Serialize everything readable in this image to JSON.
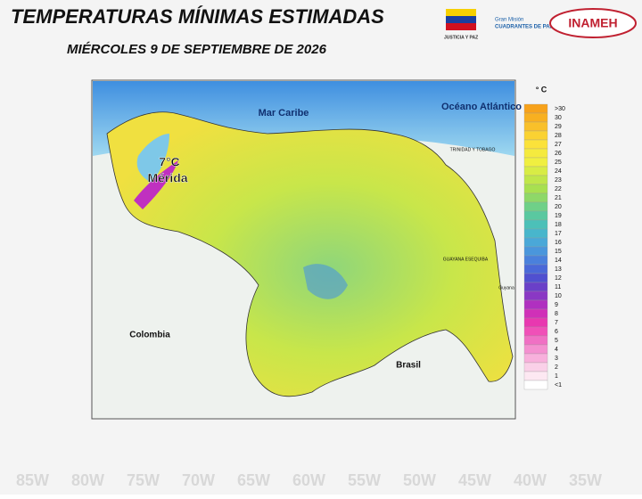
{
  "header": {
    "title": "TEMPERATURAS MÍNIMAS ESTIMADAS",
    "date": "MIÉRCOLES 9 DE SEPTIEMBRE DE 2026",
    "logos": [
      "JUSTICIA Y PAZ",
      "Gran Misión",
      "CUADRANTES DE PAZ",
      "INAMEH"
    ]
  },
  "map": {
    "labels": {
      "sea": "Mar Caribe",
      "ocean": "Océano Atlántico",
      "colombia": "Colombia",
      "brasil": "Brasil",
      "guayana": "GUAYANA ESEQUIBA",
      "trinidad": "TRINIDAD Y TOBAGO",
      "guyana": "Guyana"
    },
    "highlight": {
      "value": "7°C",
      "place": "Mérida"
    },
    "background_axis": [
      "85W",
      "80W",
      "75W",
      "70W",
      "65W",
      "60W",
      "55W",
      "50W",
      "45W",
      "40W",
      "35W"
    ]
  },
  "legend": {
    "title": "° C",
    "items": [
      {
        "label": ">30",
        "color": "#f7a21b"
      },
      {
        "label": "30",
        "color": "#f8b020"
      },
      {
        "label": "29",
        "color": "#f9c02a"
      },
      {
        "label": "28",
        "color": "#fad232"
      },
      {
        "label": "27",
        "color": "#fbe23a"
      },
      {
        "label": "26",
        "color": "#f5ea3e"
      },
      {
        "label": "25",
        "color": "#f0ef40"
      },
      {
        "label": "24",
        "color": "#d8ec45"
      },
      {
        "label": "23",
        "color": "#c0e64a"
      },
      {
        "label": "22",
        "color": "#a8e050"
      },
      {
        "label": "21",
        "color": "#8ed868"
      },
      {
        "label": "20",
        "color": "#6fd088"
      },
      {
        "label": "19",
        "color": "#5ac8a0"
      },
      {
        "label": "18",
        "color": "#4cc0b8"
      },
      {
        "label": "17",
        "color": "#48b6cc"
      },
      {
        "label": "16",
        "color": "#4aa8d8"
      },
      {
        "label": "15",
        "color": "#4a96dc"
      },
      {
        "label": "14",
        "color": "#4a80dc"
      },
      {
        "label": "13",
        "color": "#4a68d8"
      },
      {
        "label": "12",
        "color": "#5050d0"
      },
      {
        "label": "11",
        "color": "#6a40c8"
      },
      {
        "label": "10",
        "color": "#8a38c4"
      },
      {
        "label": "9",
        "color": "#b030c0"
      },
      {
        "label": "8",
        "color": "#d030b8"
      },
      {
        "label": "7",
        "color": "#e838b0"
      },
      {
        "label": "6",
        "color": "#f050b8"
      },
      {
        "label": "5",
        "color": "#f070c4"
      },
      {
        "label": "4",
        "color": "#f490d0"
      },
      {
        "label": "3",
        "color": "#f8b0dc"
      },
      {
        "label": "2",
        "color": "#fad0e8"
      },
      {
        "label": "1",
        "color": "#fde8f2"
      },
      {
        "label": "<1",
        "color": "#ffffff"
      }
    ]
  }
}
